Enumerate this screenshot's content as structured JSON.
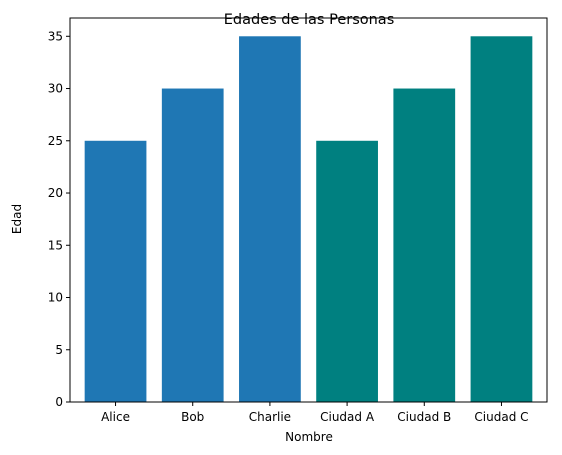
{
  "chart_data": {
    "type": "bar",
    "title": "Edades de las Personas",
    "xlabel": "Nombre",
    "ylabel": "Edad",
    "categories": [
      "Alice",
      "Bob",
      "Charlie",
      "Ciudad A",
      "Ciudad B",
      "Ciudad C"
    ],
    "values": [
      25,
      30,
      35,
      25,
      30,
      35
    ],
    "colors": [
      "#1f77b4",
      "#1f77b4",
      "#1f77b4",
      "#008080",
      "#008080",
      "#008080"
    ],
    "ylim": [
      0,
      36.75
    ],
    "yticks": [
      0,
      5,
      10,
      15,
      20,
      25,
      30,
      35
    ],
    "grid": false
  }
}
